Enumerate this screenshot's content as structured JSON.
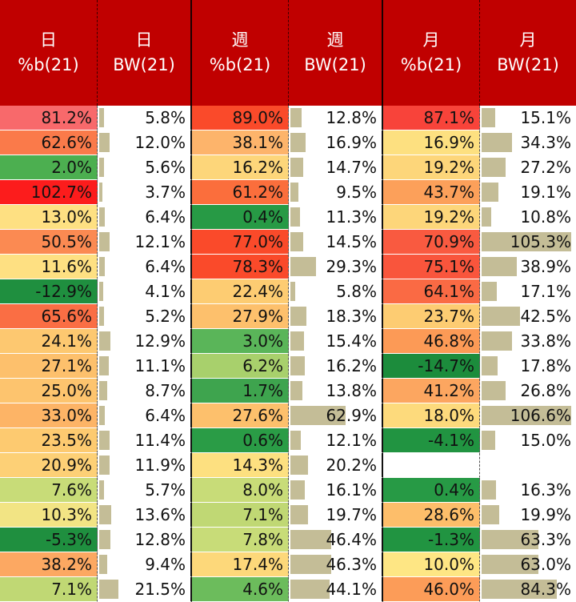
{
  "headers": [
    {
      "line1": "日",
      "line2": "%b(21)"
    },
    {
      "line1": "日",
      "line2": "BW(21)"
    },
    {
      "line1": "週",
      "line2": "%b(21)"
    },
    {
      "line1": "週",
      "line2": "BW(21)"
    },
    {
      "line1": "月",
      "line2": "%b(21)"
    },
    {
      "line1": "月",
      "line2": "BW(21)"
    }
  ],
  "rows": [
    {
      "d_pb": "81.2%",
      "d_pb_color": "#f8696b",
      "d_bw": "5.8%",
      "d_bw_v": 5.8,
      "w_pb": "89.0%",
      "w_pb_color": "#fa4a2a",
      "w_bw": "12.8%",
      "w_bw_v": 12.8,
      "m_pb": "87.1%",
      "m_pb_color": "#f8433a",
      "m_bw": "15.1%",
      "m_bw_v": 15.1
    },
    {
      "d_pb": "62.6%",
      "d_pb_color": "#fa7a4a",
      "d_bw": "12.0%",
      "d_bw_v": 12.0,
      "w_pb": "38.1%",
      "w_pb_color": "#fdb46b",
      "w_bw": "16.9%",
      "w_bw_v": 16.9,
      "m_pb": "16.9%",
      "m_pb_color": "#fde080",
      "m_bw": "34.3%",
      "m_bw_v": 34.3
    },
    {
      "d_pb": "2.0%",
      "d_pb_color": "#4caf50",
      "d_bw": "5.6%",
      "d_bw_v": 5.6,
      "w_pb": "16.2%",
      "w_pb_color": "#fdd67a",
      "w_bw": "14.7%",
      "w_bw_v": 14.7,
      "m_pb": "19.2%",
      "m_pb_color": "#fdd67a",
      "m_bw": "27.2%",
      "m_bw_v": 27.2
    },
    {
      "d_pb": "102.7%",
      "d_pb_color": "#fc1c1c",
      "d_bw": "3.7%",
      "d_bw_v": 3.7,
      "w_pb": "61.2%",
      "w_pb_color": "#fb6e3c",
      "w_bw": "9.5%",
      "w_bw_v": 9.5,
      "m_pb": "43.7%",
      "m_pb_color": "#fca05a",
      "m_bw": "19.1%",
      "m_bw_v": 19.1
    },
    {
      "d_pb": "13.0%",
      "d_pb_color": "#fee082",
      "d_bw": "6.4%",
      "d_bw_v": 6.4,
      "w_pb": "0.4%",
      "w_pb_color": "#279a45",
      "w_bw": "11.3%",
      "w_bw_v": 11.3,
      "m_pb": "19.2%",
      "m_pb_color": "#fdd67a",
      "m_bw": "10.8%",
      "m_bw_v": 10.8
    },
    {
      "d_pb": "50.5%",
      "d_pb_color": "#fb8a52",
      "d_bw": "12.1%",
      "d_bw_v": 12.1,
      "w_pb": "77.0%",
      "w_pb_color": "#fa4a2a",
      "w_bw": "14.5%",
      "w_bw_v": 14.5,
      "m_pb": "70.9%",
      "m_pb_color": "#f95a40",
      "m_bw": "105.3%",
      "m_bw_v": 105.3
    },
    {
      "d_pb": "11.6%",
      "d_pb_color": "#fee082",
      "d_bw": "6.4%",
      "d_bw_v": 6.4,
      "w_pb": "78.3%",
      "w_pb_color": "#fa4a2a",
      "w_bw": "29.3%",
      "w_bw_v": 29.3,
      "m_pb": "75.1%",
      "m_pb_color": "#f9553c",
      "m_bw": "38.9%",
      "m_bw_v": 38.9
    },
    {
      "d_pb": "-12.9%",
      "d_pb_color": "#1f8f3f",
      "d_bw": "4.1%",
      "d_bw_v": 4.1,
      "w_pb": "22.4%",
      "w_pb_color": "#fdcc72",
      "w_bw": "5.8%",
      "w_bw_v": 5.8,
      "m_pb": "64.1%",
      "m_pb_color": "#fa6a44",
      "m_bw": "17.1%",
      "m_bw_v": 17.1
    },
    {
      "d_pb": "65.6%",
      "d_pb_color": "#fa6e44",
      "d_bw": "5.2%",
      "d_bw_v": 5.2,
      "w_pb": "27.9%",
      "w_pb_color": "#fdc06c",
      "w_bw": "18.3%",
      "w_bw_v": 18.3,
      "m_pb": "23.7%",
      "m_pb_color": "#fdcc72",
      "m_bw": "42.5%",
      "m_bw_v": 42.5
    },
    {
      "d_pb": "24.1%",
      "d_pb_color": "#fdc870",
      "d_bw": "12.9%",
      "d_bw_v": 12.9,
      "w_pb": "3.0%",
      "w_pb_color": "#5ab559",
      "w_bw": "15.4%",
      "w_bw_v": 15.4,
      "m_pb": "46.8%",
      "m_pb_color": "#fc9a56",
      "m_bw": "33.8%",
      "m_bw_v": 33.8
    },
    {
      "d_pb": "27.1%",
      "d_pb_color": "#fdc06c",
      "d_bw": "11.1%",
      "d_bw_v": 11.1,
      "w_pb": "6.2%",
      "w_pb_color": "#a8d06c",
      "w_bw": "16.2%",
      "w_bw_v": 16.2,
      "m_pb": "-14.7%",
      "m_pb_color": "#1c8c3c",
      "m_bw": "17.8%",
      "m_bw_v": 17.8
    },
    {
      "d_pb": "25.0%",
      "d_pb_color": "#fdc46e",
      "d_bw": "8.7%",
      "d_bw_v": 8.7,
      "w_pb": "1.7%",
      "w_pb_color": "#3ea44e",
      "w_bw": "13.8%",
      "w_bw_v": 13.8,
      "m_pb": "41.2%",
      "m_pb_color": "#fca660",
      "m_bw": "26.8%",
      "m_bw_v": 26.8
    },
    {
      "d_pb": "33.0%",
      "d_pb_color": "#fdb466",
      "d_bw": "6.4%",
      "d_bw_v": 6.4,
      "w_pb": "27.6%",
      "w_pb_color": "#fdc06c",
      "w_bw": "62.9%",
      "w_bw_v": 62.9,
      "m_pb": "18.0%",
      "m_pb_color": "#fdda7c",
      "m_bw": "106.6%",
      "m_bw_v": 106.6
    },
    {
      "d_pb": "23.5%",
      "d_pb_color": "#fdca70",
      "d_bw": "11.4%",
      "d_bw_v": 11.4,
      "w_pb": "0.6%",
      "w_pb_color": "#2a9c46",
      "w_bw": "12.1%",
      "w_bw_v": 12.1,
      "m_pb": "-4.1%",
      "m_pb_color": "#219441",
      "m_bw": "15.0%",
      "m_bw_v": 15.0
    },
    {
      "d_pb": "20.9%",
      "d_pb_color": "#fdd076",
      "d_bw": "11.9%",
      "d_bw_v": 11.9,
      "w_pb": "14.3%",
      "w_pb_color": "#fde080",
      "w_bw": "20.2%",
      "w_bw_v": 20.2,
      "m_pb": "",
      "m_pb_color": "#ffffff",
      "m_bw": "",
      "m_bw_v": 0
    },
    {
      "d_pb": "7.6%",
      "d_pb_color": "#c8dc78",
      "d_bw": "5.7%",
      "d_bw_v": 5.7,
      "w_pb": "8.0%",
      "w_pb_color": "#c8dc78",
      "w_bw": "16.1%",
      "w_bw_v": 16.1,
      "m_pb": "0.4%",
      "m_pb_color": "#279a45",
      "m_bw": "16.3%",
      "m_bw_v": 16.3
    },
    {
      "d_pb": "10.3%",
      "d_pb_color": "#f2e484",
      "d_bw": "13.6%",
      "d_bw_v": 13.6,
      "w_pb": "7.1%",
      "w_pb_color": "#c0d874",
      "w_bw": "19.7%",
      "w_bw_v": 19.7,
      "m_pb": "28.6%",
      "m_pb_color": "#fdbe6a",
      "m_bw": "19.9%",
      "m_bw_v": 19.9
    },
    {
      "d_pb": "-5.3%",
      "d_pb_color": "#1f8f3f",
      "d_bw": "12.8%",
      "d_bw_v": 12.8,
      "w_pb": "7.8%",
      "w_pb_color": "#c8dc78",
      "w_bw": "46.4%",
      "w_bw_v": 46.4,
      "m_pb": "-1.3%",
      "m_pb_color": "#219441",
      "m_bw": "63.3%",
      "m_bw_v": 63.3
    },
    {
      "d_pb": "38.2%",
      "d_pb_color": "#fca862",
      "d_bw": "9.4%",
      "d_bw_v": 9.4,
      "w_pb": "17.4%",
      "w_pb_color": "#fdd87a",
      "w_bw": "46.3%",
      "w_bw_v": 46.3,
      "m_pb": "10.0%",
      "m_pb_color": "#fee684",
      "m_bw": "63.0%",
      "m_bw_v": 63.0
    },
    {
      "d_pb": "7.1%",
      "d_pb_color": "#c0d874",
      "d_bw": "21.5%",
      "d_bw_v": 21.5,
      "w_pb": "4.6%",
      "w_pb_color": "#6cbc5c",
      "w_bw": "44.1%",
      "w_bw_v": 44.1,
      "m_pb": "46.0%",
      "m_pb_color": "#fc9c58",
      "m_bw": "84.3%",
      "m_bw_v": 84.3
    }
  ],
  "colors": {
    "header_bg": "#c00000",
    "header_text": "#ffffff",
    "databar": "#c4bd97"
  }
}
